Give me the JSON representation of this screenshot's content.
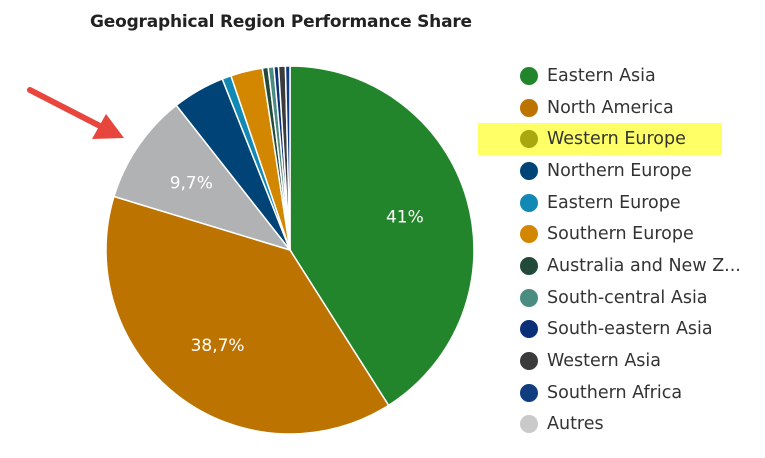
{
  "chart_data": {
    "type": "pie",
    "title": "Geographical Region Performance Share",
    "slices": [
      {
        "label": "Eastern Asia",
        "value": 41.0,
        "color": "#23852b",
        "data_label": "41%"
      },
      {
        "label": "North America",
        "value": 38.7,
        "color": "#bd7300",
        "data_label": "38,7%"
      },
      {
        "label": "Western Europe",
        "value": 0.0,
        "color": "#a9a90f"
      },
      {
        "label": "Autres",
        "value": 9.7,
        "color": "#b1b2b4",
        "data_label": "9,7%"
      },
      {
        "label": "Northern Europe",
        "value": 4.6,
        "color": "#004376"
      },
      {
        "label": "Eastern Europe",
        "value": 0.8,
        "color": "#1189b4"
      },
      {
        "label": "Southern Europe",
        "value": 2.8,
        "color": "#d38700"
      },
      {
        "label": "Australia and New Z...",
        "value": 0.5,
        "color": "#224a3a"
      },
      {
        "label": "South-central Asia",
        "value": 0.5,
        "color": "#4a8c80"
      },
      {
        "label": "South-eastern Asia",
        "value": 0.4,
        "color": "#0a3077"
      },
      {
        "label": "Western Asia",
        "value": 0.6,
        "color": "#3b3b3b"
      },
      {
        "label": "Southern Africa",
        "value": 0.4,
        "color": "#0f3d80"
      }
    ],
    "legend": {
      "position": "right",
      "highlighted": "Western Europe",
      "items": [
        {
          "label": "Eastern Asia",
          "color": "#23852b"
        },
        {
          "label": "North America",
          "color": "#bd7300"
        },
        {
          "label": "Western Europe",
          "color": "#a9a90f"
        },
        {
          "label": "Northern Europe",
          "color": "#004376"
        },
        {
          "label": "Eastern Europe",
          "color": "#1189b4"
        },
        {
          "label": "Southern Europe",
          "color": "#d38700"
        },
        {
          "label": "Australia and New Z...",
          "color": "#224a3a"
        },
        {
          "label": "South-central Asia",
          "color": "#4a8c80"
        },
        {
          "label": "South-eastern Asia",
          "color": "#0a3077"
        },
        {
          "label": "Western Asia",
          "color": "#3b3b3b"
        },
        {
          "label": "Southern Africa",
          "color": "#0f3d80"
        },
        {
          "label": "Autres",
          "color": "#c9c9c9"
        }
      ]
    },
    "annotation": {
      "type": "arrow",
      "color": "#e8453c",
      "points_to": "Autres"
    }
  }
}
